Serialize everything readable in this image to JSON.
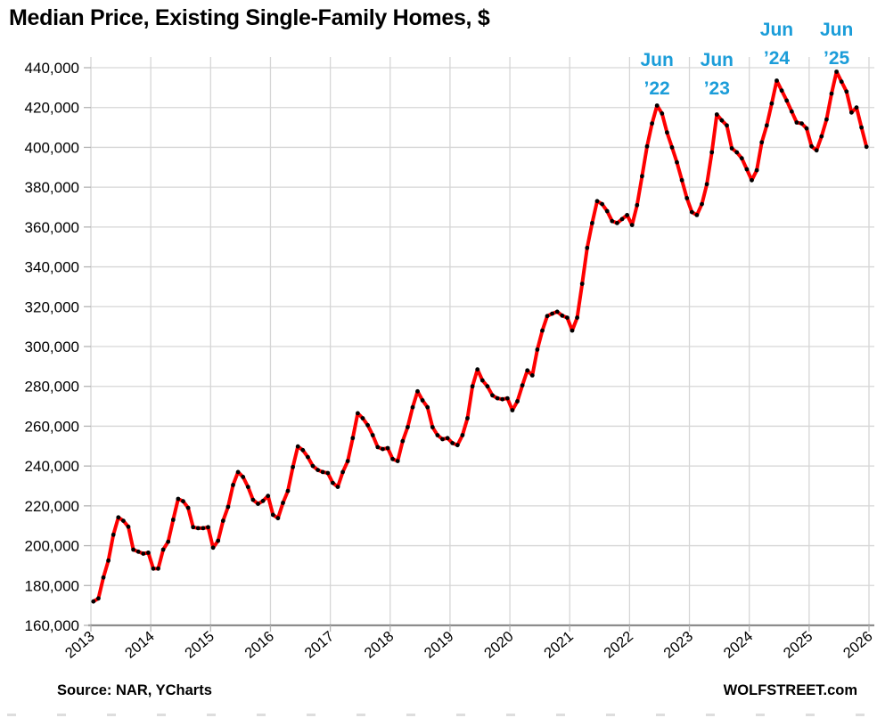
{
  "title": "Median Price, Existing Single-Family Homes, $",
  "footer": {
    "source": "Source: NAR, YCharts",
    "brand": "WOLFSTREET.com"
  },
  "colors": {
    "line": "#fe0000",
    "marker": "#000000",
    "annotation": "#1b9dd9",
    "gridline": "#d6d6d6",
    "axis": "#8c8c8c",
    "tick": "#b3b3b3",
    "text": "#000000",
    "background": "#ffffff"
  },
  "chart_data": {
    "type": "line",
    "title": "Median Price, Existing Single-Family Homes, $",
    "series_name": "Median price, existing single-family homes, USD",
    "x_start": {
      "year": 2013,
      "month": 1
    },
    "x_end": {
      "year": 2025,
      "month": 12
    },
    "x_tick_labels": [
      "2013",
      "2014",
      "2015",
      "2016",
      "2017",
      "2018",
      "2019",
      "2020",
      "2021",
      "2022",
      "2023",
      "2024",
      "2025",
      "2026"
    ],
    "y_ticks": [
      160000,
      180000,
      200000,
      220000,
      240000,
      260000,
      280000,
      300000,
      320000,
      340000,
      360000,
      380000,
      400000,
      420000,
      440000
    ],
    "y_tick_labels": [
      "160,000",
      "180,000",
      "200,000",
      "220,000",
      "240,000",
      "260,000",
      "280,000",
      "300,000",
      "320,000",
      "340,000",
      "360,000",
      "380,000",
      "400,000",
      "420,000",
      "440,000"
    ],
    "ylim": [
      160000,
      445500
    ],
    "grid": true,
    "legend_position": "none",
    "values": [
      172000,
      173500,
      184000,
      192500,
      205500,
      214200,
      212500,
      209500,
      198000,
      197000,
      196000,
      196500,
      188500,
      188500,
      198000,
      202000,
      213000,
      223500,
      222300,
      219000,
      209300,
      208800,
      208800,
      209300,
      199000,
      202500,
      212500,
      219500,
      230500,
      237000,
      234500,
      229500,
      223000,
      221000,
      222500,
      225000,
      215500,
      213800,
      221500,
      227500,
      239500,
      249800,
      248000,
      244500,
      240000,
      238000,
      237000,
      236500,
      231500,
      229500,
      237000,
      242500,
      254000,
      266500,
      264000,
      260500,
      255500,
      249500,
      248500,
      249000,
      243500,
      242500,
      252500,
      259500,
      269500,
      277500,
      273000,
      269500,
      259500,
      255500,
      253500,
      254000,
      251500,
      250500,
      255500,
      264000,
      280000,
      288500,
      283000,
      280000,
      275500,
      274000,
      273500,
      274000,
      268000,
      272500,
      280500,
      288000,
      285500,
      298500,
      308000,
      315300,
      316500,
      317500,
      315500,
      314500,
      308000,
      314500,
      331500,
      349500,
      362000,
      373000,
      371500,
      368000,
      363000,
      362000,
      364000,
      366000,
      361000,
      371000,
      385500,
      400500,
      412000,
      421000,
      417000,
      407500,
      400000,
      392500,
      383500,
      374500,
      367500,
      366000,
      371500,
      381500,
      397500,
      416500,
      413500,
      411000,
      399500,
      397500,
      394500,
      389000,
      383500,
      388500,
      402500,
      411000,
      422000,
      433500,
      428500,
      423500,
      418000,
      412500,
      412000,
      409500,
      400500,
      398500,
      405500,
      414000,
      427000,
      438000,
      433000,
      428000,
      417500,
      420000,
      410000,
      400300
    ],
    "annotations": [
      {
        "line1": "Jun",
        "line2": "’22",
        "month": "2022-06",
        "level": "low"
      },
      {
        "line1": "Jun",
        "line2": "’23",
        "month": "2023-06",
        "level": "low"
      },
      {
        "line1": "Jun",
        "line2": "’24",
        "month": "2024-06",
        "level": "high"
      },
      {
        "line1": "Jun",
        "line2": "’25",
        "month": "2025-06",
        "level": "high"
      }
    ]
  }
}
